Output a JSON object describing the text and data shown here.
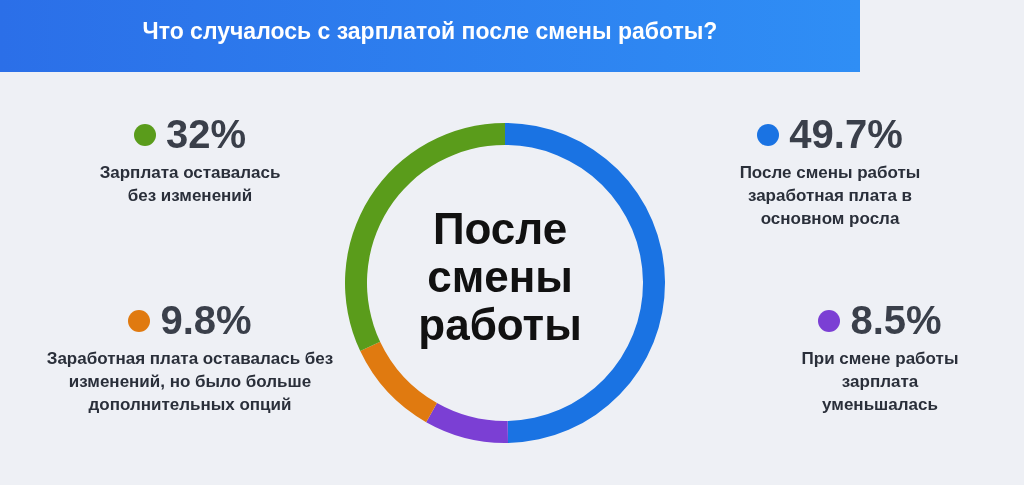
{
  "chart_data": {
    "type": "donut",
    "title": "Что случалось с зарплатой после смены работы?",
    "categories": [
      "После смены работы заработная плата в основном росла",
      "При смене работы зарплата уменьшалась",
      "Заработная плата оставалась без изменений, но было больше дополнительных опций",
      "Зарплата оставалась без изменений"
    ],
    "values": [
      49.7,
      8.5,
      9.8,
      32
    ],
    "value_labels": [
      "49.7%",
      "8.5%",
      "9.8%",
      "32%"
    ],
    "colors": [
      "#1a73e3",
      "#7b3fd4",
      "#e07a10",
      "#5a9c1b"
    ],
    "annotations": [
      "После смены работы"
    ],
    "legend": "right"
  }
}
